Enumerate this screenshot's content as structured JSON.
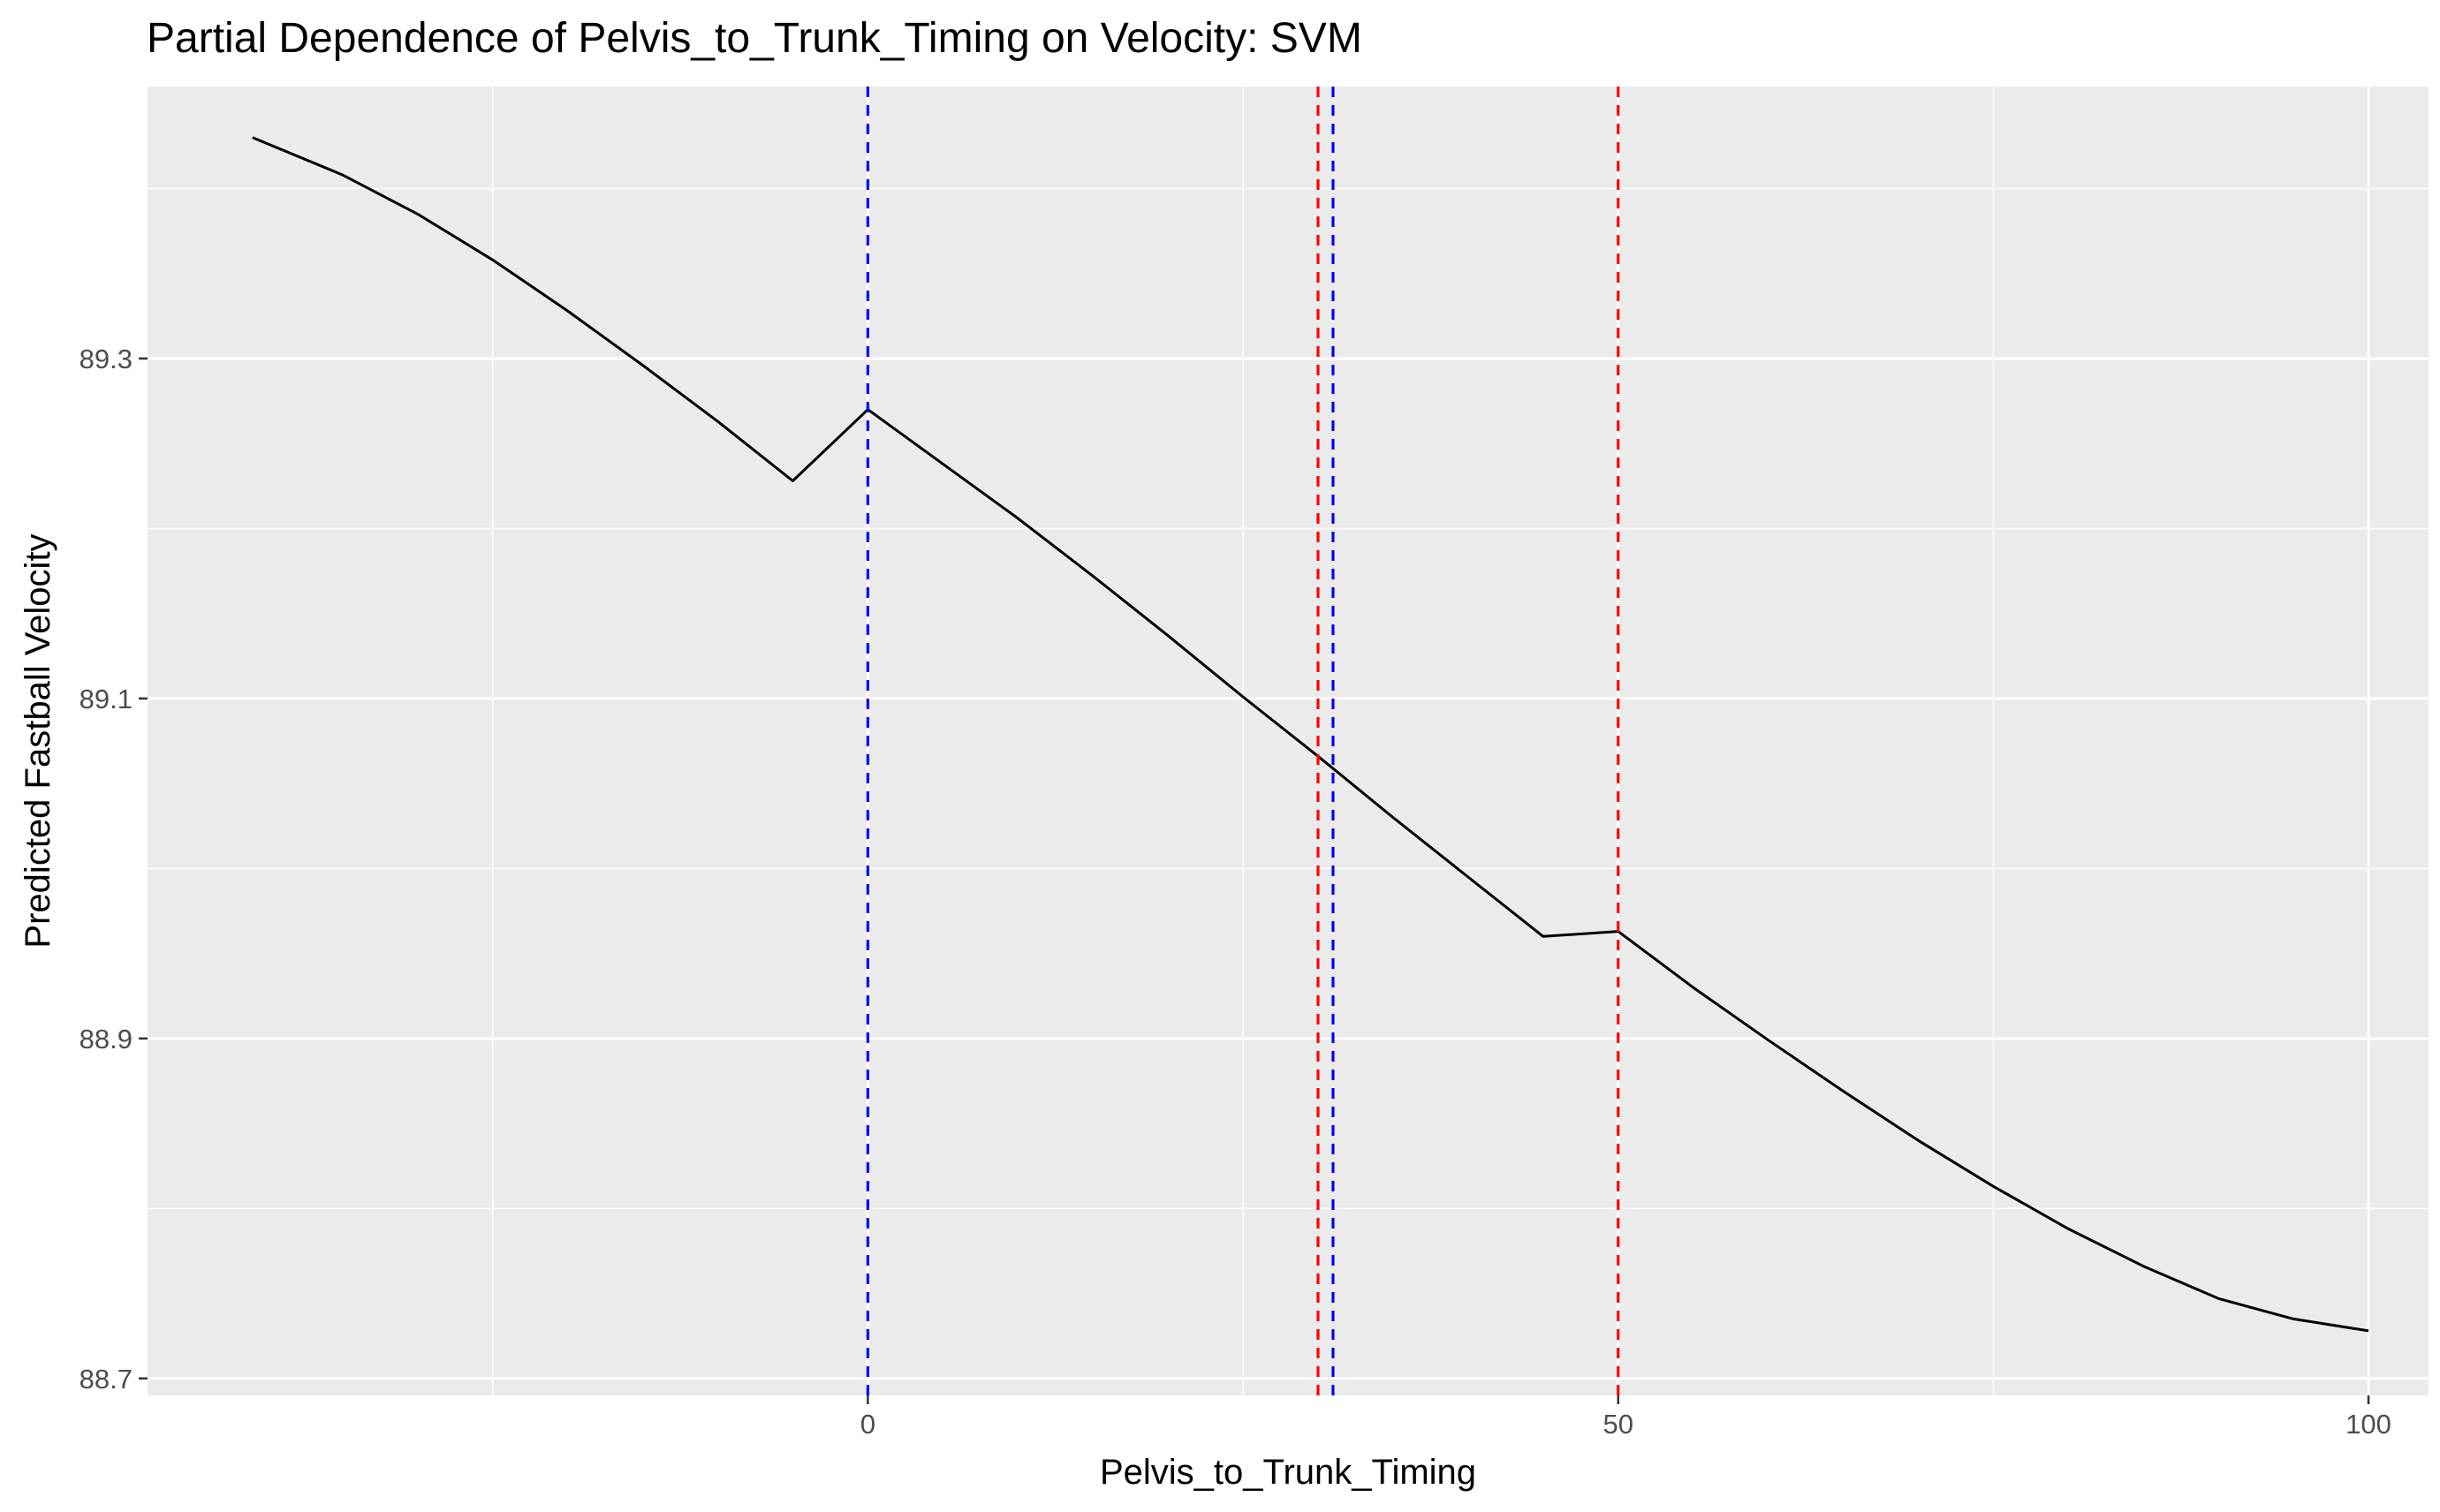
{
  "chart_data": {
    "type": "line",
    "title": "Partial Dependence of Pelvis_to_Trunk_Timing on Velocity: SVM",
    "xlabel": "Pelvis_to_Trunk_Timing",
    "ylabel": "Predicted Fastball Velocity",
    "xlim": [
      -48,
      104
    ],
    "ylim": [
      88.69,
      89.46
    ],
    "x_ticks": [
      0,
      50,
      100
    ],
    "x_tick_labels": [
      "0",
      "50",
      "100"
    ],
    "y_ticks": [
      88.7,
      88.9,
      89.1,
      89.3
    ],
    "y_tick_labels": [
      "88.7",
      "88.9",
      "89.1",
      "89.3"
    ],
    "grid": true,
    "background": "#ebebeb",
    "grid_color": "#ffffff",
    "series": [
      {
        "color": "#000000",
        "x": [
          -41,
          -35,
          -30,
          -25,
          -20,
          -15,
          -10,
          -5,
          0,
          5,
          10,
          15,
          20,
          25,
          30,
          35,
          40,
          45,
          50,
          55,
          60,
          65,
          70,
          75,
          80,
          85,
          90,
          95,
          100
        ],
        "y": [
          89.43,
          89.408,
          89.385,
          89.358,
          89.328,
          89.296,
          89.263,
          89.228,
          89.27,
          89.238,
          89.206,
          89.172,
          89.137,
          89.101,
          89.066,
          89.03,
          88.995,
          88.96,
          88.963,
          88.93,
          88.899,
          88.869,
          88.84,
          88.813,
          88.788,
          88.766,
          88.747,
          88.735,
          88.728
        ]
      }
    ],
    "vlines": [
      {
        "x": 0,
        "color": "#0000ff",
        "linestyle": "dashed"
      },
      {
        "x": 31,
        "color": "#0000ff",
        "linestyle": "dashed"
      },
      {
        "x": 30,
        "color": "#ff0000",
        "linestyle": "dashed"
      },
      {
        "x": 50,
        "color": "#ff0000",
        "linestyle": "dashed"
      }
    ]
  }
}
